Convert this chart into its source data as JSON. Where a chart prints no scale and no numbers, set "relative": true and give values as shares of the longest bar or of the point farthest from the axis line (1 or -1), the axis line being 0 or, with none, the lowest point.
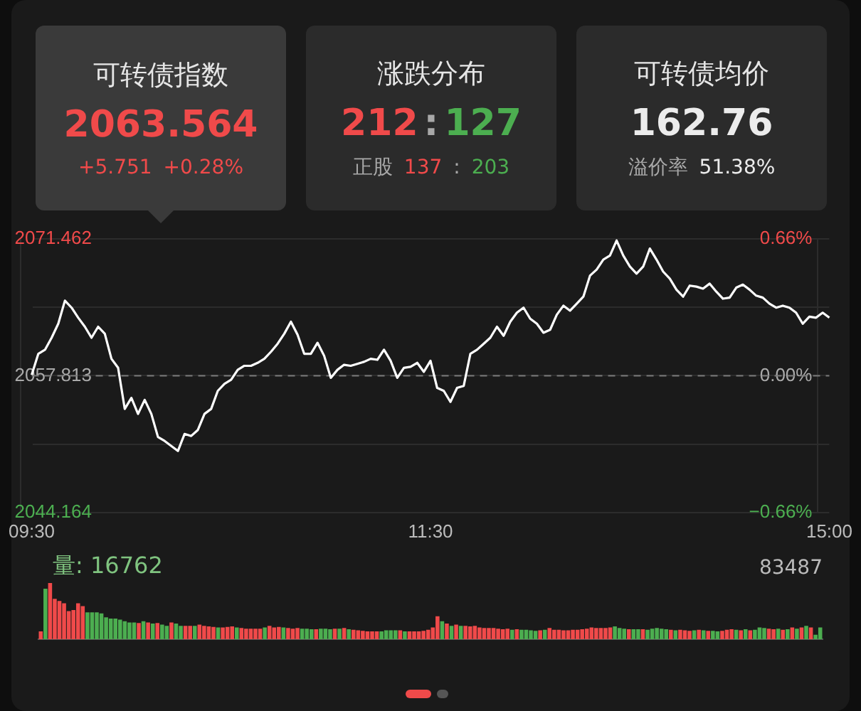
{
  "chart_data": [
    {
      "type": "other",
      "annotations": [
        "可转债指数",
        "2063.564",
        "+5.751",
        "+0.28%",
        "涨跌分布",
        "212",
        ":",
        "127",
        "正股",
        "137",
        ":",
        "203",
        "可转债均价",
        "162.76",
        "溢价率",
        "51.38%"
      ]
    },
    {
      "type": "line",
      "grid": "y",
      "categories": [
        "09:30",
        null,
        null,
        null,
        null,
        null,
        null,
        null,
        null,
        null,
        null,
        null,
        null,
        null,
        null,
        null,
        null,
        null,
        null,
        null,
        null,
        null,
        null,
        null,
        null,
        null,
        null,
        null,
        null,
        null,
        null,
        null,
        null,
        null,
        null,
        null,
        null,
        null,
        null,
        null,
        null,
        null,
        null,
        null,
        null,
        null,
        null,
        null,
        null,
        null,
        null,
        null,
        null,
        null,
        null,
        null,
        null,
        null,
        null,
        null,
        "11:30",
        null,
        null,
        null,
        null,
        null,
        null,
        null,
        null,
        null,
        null,
        null,
        null,
        null,
        null,
        null,
        null,
        null,
        null,
        null,
        null,
        null,
        null,
        null,
        null,
        null,
        null,
        null,
        null,
        null,
        null,
        null,
        null,
        null,
        null,
        null,
        null,
        null,
        null,
        null,
        null,
        null,
        null,
        null,
        null,
        null,
        null,
        null,
        null,
        null,
        null,
        null,
        null,
        null,
        null,
        null,
        null,
        null,
        null,
        null,
        "15:00"
      ],
      "ylim": [
        2044.164,
        2071.462
      ],
      "yticks": [
        2044.164,
        {
          "value": 2050.9885,
          "label": null
        },
        2057.813,
        {
          "value": 2064.6375,
          "label": null
        },
        2071.462
      ],
      "y2lim": [
        -0.66,
        0.66
      ],
      "y2ticks": [
        {
          "value": -0.66,
          "label": "−0.66%"
        },
        {
          "value": 0,
          "label": "0.00%"
        },
        {
          "value": 0.66,
          "label": "0.66%"
        }
      ],
      "ref_lines": [
        {
          "axis": "y",
          "value": 2057.813,
          "line_style": "dashed",
          "color": "#7a7a7a"
        }
      ],
      "series": [
        {
          "color": "#ffffff",
          "values": [
            2057.9,
            2060.0,
            2060.4,
            2061.6,
            2063.0,
            2065.3,
            2064.6,
            2063.6,
            2062.7,
            2061.6,
            2062.7,
            2062.0,
            2059.5,
            2058.6,
            2054.5,
            2055.6,
            2054.0,
            2055.4,
            2054.0,
            2051.7,
            2051.3,
            2050.8,
            2050.3,
            2052.0,
            2051.8,
            2052.4,
            2054.0,
            2054.5,
            2056.3,
            2057.0,
            2057.4,
            2058.4,
            2058.8,
            2058.8,
            2059.1,
            2059.5,
            2060.2,
            2061.0,
            2062.0,
            2063.2,
            2061.9,
            2060.0,
            2060.0,
            2061.1,
            2059.8,
            2057.6,
            2058.4,
            2058.9,
            2058.8,
            2059.0,
            2059.2,
            2059.5,
            2059.4,
            2060.4,
            2059.3,
            2057.6,
            2058.6,
            2058.7,
            2059.1,
            2058.2,
            2059.3,
            2056.6,
            2056.3,
            2055.2,
            2056.6,
            2056.8,
            2060.0,
            2060.4,
            2061.0,
            2061.6,
            2062.7,
            2061.8,
            2063.2,
            2064.1,
            2064.6,
            2063.5,
            2063.0,
            2062.1,
            2062.4,
            2063.9,
            2064.8,
            2064.3,
            2065.0,
            2065.7,
            2067.8,
            2068.4,
            2069.4,
            2069.8,
            2071.3,
            2069.8,
            2068.7,
            2068.0,
            2068.7,
            2070.5,
            2069.4,
            2068.2,
            2067.5,
            2066.4,
            2065.7,
            2066.8,
            2066.7,
            2066.5,
            2067.0,
            2066.2,
            2065.5,
            2065.6,
            2066.6,
            2066.9,
            2066.4,
            2065.8,
            2065.6,
            2065.0,
            2064.6,
            2064.8,
            2064.6,
            2064.1,
            2063.0,
            2063.7,
            2063.6,
            2064.1,
            2063.6
          ]
        }
      ]
    },
    {
      "type": "bar",
      "relative": true,
      "annotations": [
        "量: 16762",
        "83487"
      ],
      "categories": [
        null,
        null,
        null,
        null,
        null,
        null,
        null,
        null,
        null,
        null,
        null,
        null,
        null,
        null,
        null,
        null,
        null,
        null,
        null,
        null,
        null,
        null,
        null,
        null,
        null,
        null,
        null,
        null,
        null,
        null,
        null,
        null,
        null,
        null,
        null,
        null,
        null,
        null,
        null,
        null,
        null,
        null,
        null,
        null,
        null,
        null,
        null,
        null,
        null,
        null,
        null,
        null,
        null,
        null,
        null,
        null,
        null,
        null,
        null,
        null,
        null,
        null,
        null,
        null,
        null,
        null,
        null,
        null,
        null,
        null,
        null,
        null,
        null,
        null,
        null,
        null,
        null,
        null,
        null,
        null,
        null,
        null,
        null,
        null,
        null,
        null,
        null,
        null,
        null,
        null,
        null,
        null,
        null,
        null,
        null,
        null,
        null,
        null,
        null,
        null,
        null,
        null,
        null,
        null,
        null,
        null,
        null,
        null,
        null,
        null,
        null,
        null,
        null,
        null,
        null,
        null,
        null,
        null,
        null,
        null,
        null,
        null,
        null,
        null,
        null,
        null,
        null,
        null,
        null,
        null,
        null,
        null,
        null,
        null,
        null,
        null,
        null,
        null,
        null,
        null,
        null,
        null,
        null,
        null,
        null,
        null,
        null,
        null,
        null,
        null,
        null,
        null,
        null,
        null,
        null,
        null,
        null,
        null,
        null,
        null,
        null,
        null,
        null,
        null,
        null,
        null,
        null,
        null
      ],
      "values": [
        0.14,
        0.9,
        1.0,
        0.72,
        0.68,
        0.64,
        0.5,
        0.52,
        0.64,
        0.59,
        0.48,
        0.48,
        0.48,
        0.46,
        0.39,
        0.37,
        0.37,
        0.35,
        0.32,
        0.3,
        0.3,
        0.29,
        0.32,
        0.3,
        0.28,
        0.29,
        0.26,
        0.24,
        0.3,
        0.28,
        0.24,
        0.24,
        0.24,
        0.24,
        0.26,
        0.24,
        0.23,
        0.22,
        0.21,
        0.21,
        0.22,
        0.23,
        0.21,
        0.2,
        0.19,
        0.19,
        0.19,
        0.19,
        0.21,
        0.24,
        0.21,
        0.22,
        0.21,
        0.2,
        0.19,
        0.2,
        0.19,
        0.19,
        0.18,
        0.18,
        0.19,
        0.19,
        0.18,
        0.19,
        0.19,
        0.2,
        0.18,
        0.17,
        0.16,
        0.15,
        0.14,
        0.14,
        0.14,
        0.14,
        0.16,
        0.16,
        0.16,
        0.16,
        0.14,
        0.14,
        0.14,
        0.14,
        0.15,
        0.17,
        0.21,
        0.41,
        0.32,
        0.28,
        0.24,
        0.26,
        0.24,
        0.24,
        0.23,
        0.24,
        0.21,
        0.2,
        0.2,
        0.2,
        0.19,
        0.18,
        0.19,
        0.17,
        0.18,
        0.17,
        0.17,
        0.16,
        0.15,
        0.16,
        0.17,
        0.2,
        0.17,
        0.17,
        0.16,
        0.16,
        0.17,
        0.17,
        0.18,
        0.19,
        0.21,
        0.2,
        0.2,
        0.2,
        0.21,
        0.23,
        0.2,
        0.19,
        0.18,
        0.18,
        0.18,
        0.18,
        0.17,
        0.19,
        0.2,
        0.19,
        0.18,
        0.17,
        0.16,
        0.17,
        0.16,
        0.15,
        0.16,
        0.17,
        0.16,
        0.15,
        0.15,
        0.14,
        0.15,
        0.17,
        0.18,
        0.17,
        0.16,
        0.18,
        0.16,
        0.17,
        0.21,
        0.2,
        0.19,
        0.18,
        0.19,
        0.17,
        0.18,
        0.21,
        0.19,
        0.21,
        0.24,
        0.21,
        0.08,
        0.21
      ],
      "colors": [
        "#f04a4a",
        "#4cae50",
        "#f04a4a",
        "#f04a4a",
        "#f04a4a",
        "#f04a4a",
        "#f04a4a",
        "#f04a4a",
        "#f04a4a",
        "#f04a4a",
        "#4cae50",
        "#4cae50",
        "#4cae50",
        "#4cae50",
        "#4cae50",
        "#4cae50",
        "#4cae50",
        "#4cae50",
        "#4cae50",
        "#4cae50",
        "#4cae50",
        "#f04a4a",
        "#4cae50",
        "#f04a4a",
        "#4cae50",
        "#f04a4a",
        "#4cae50",
        "#4cae50",
        "#f04a4a",
        "#4cae50",
        "#4cae50",
        "#f04a4a",
        "#f04a4a",
        "#4cae50",
        "#f04a4a",
        "#f04a4a",
        "#f04a4a",
        "#f04a4a",
        "#4cae50",
        "#f04a4a",
        "#f04a4a",
        "#f04a4a",
        "#4cae50",
        "#f04a4a",
        "#f04a4a",
        "#f04a4a",
        "#f04a4a",
        "#f04a4a",
        "#4cae50",
        "#f04a4a",
        "#f04a4a",
        "#f04a4a",
        "#4cae50",
        "#f04a4a",
        "#f04a4a",
        "#f04a4a",
        "#4cae50",
        "#4cae50",
        "#4cae50",
        "#f04a4a",
        "#4cae50",
        "#4cae50",
        "#4cae50",
        "#f04a4a",
        "#4cae50",
        "#f04a4a",
        "#4cae50",
        "#f04a4a",
        "#f04a4a",
        "#f04a4a",
        "#f04a4a",
        "#f04a4a",
        "#f04a4a",
        "#4cae50",
        "#4cae50",
        "#4cae50",
        "#4cae50",
        "#f04a4a",
        "#4cae50",
        "#f04a4a",
        "#f04a4a",
        "#f04a4a",
        "#f04a4a",
        "#f04a4a",
        "#f04a4a",
        "#f04a4a",
        "#4cae50",
        "#f04a4a",
        "#4cae50",
        "#f04a4a",
        "#4cae50",
        "#f04a4a",
        "#f04a4a",
        "#f04a4a",
        "#f04a4a",
        "#f04a4a",
        "#f04a4a",
        "#f04a4a",
        "#f04a4a",
        "#f04a4a",
        "#f04a4a",
        "#4cae50",
        "#f04a4a",
        "#4cae50",
        "#4cae50",
        "#4cae50",
        "#4cae50",
        "#f04a4a",
        "#4cae50",
        "#f04a4a",
        "#f04a4a",
        "#f04a4a",
        "#f04a4a",
        "#f04a4a",
        "#f04a4a",
        "#f04a4a",
        "#f04a4a",
        "#f04a4a",
        "#f04a4a",
        "#f04a4a",
        "#f04a4a",
        "#f04a4a",
        "#f04a4a",
        "#4cae50",
        "#4cae50",
        "#4cae50",
        "#f04a4a",
        "#4cae50",
        "#4cae50",
        "#f04a4a",
        "#4cae50",
        "#4cae50",
        "#4cae50",
        "#4cae50",
        "#4cae50",
        "#f04a4a",
        "#4cae50",
        "#f04a4a",
        "#f04a4a",
        "#f04a4a",
        "#4cae50",
        "#f04a4a",
        "#4cae50",
        "#f04a4a",
        "#4cae50",
        "#4cae50",
        "#f04a4a",
        "#f04a4a",
        "#f04a4a",
        "#4cae50",
        "#f04a4a",
        "#4cae50",
        "#f04a4a",
        "#4cae50",
        "#4cae50",
        "#4cae50",
        "#f04a4a",
        "#f04a4a",
        "#4cae50",
        "#f04a4a",
        "#4cae50",
        "#f04a4a",
        "#4cae50",
        "#f04a4a",
        "#4cae50",
        "#f04a4a",
        "#4cae50",
        "#4cae50"
      ]
    }
  ]
}
